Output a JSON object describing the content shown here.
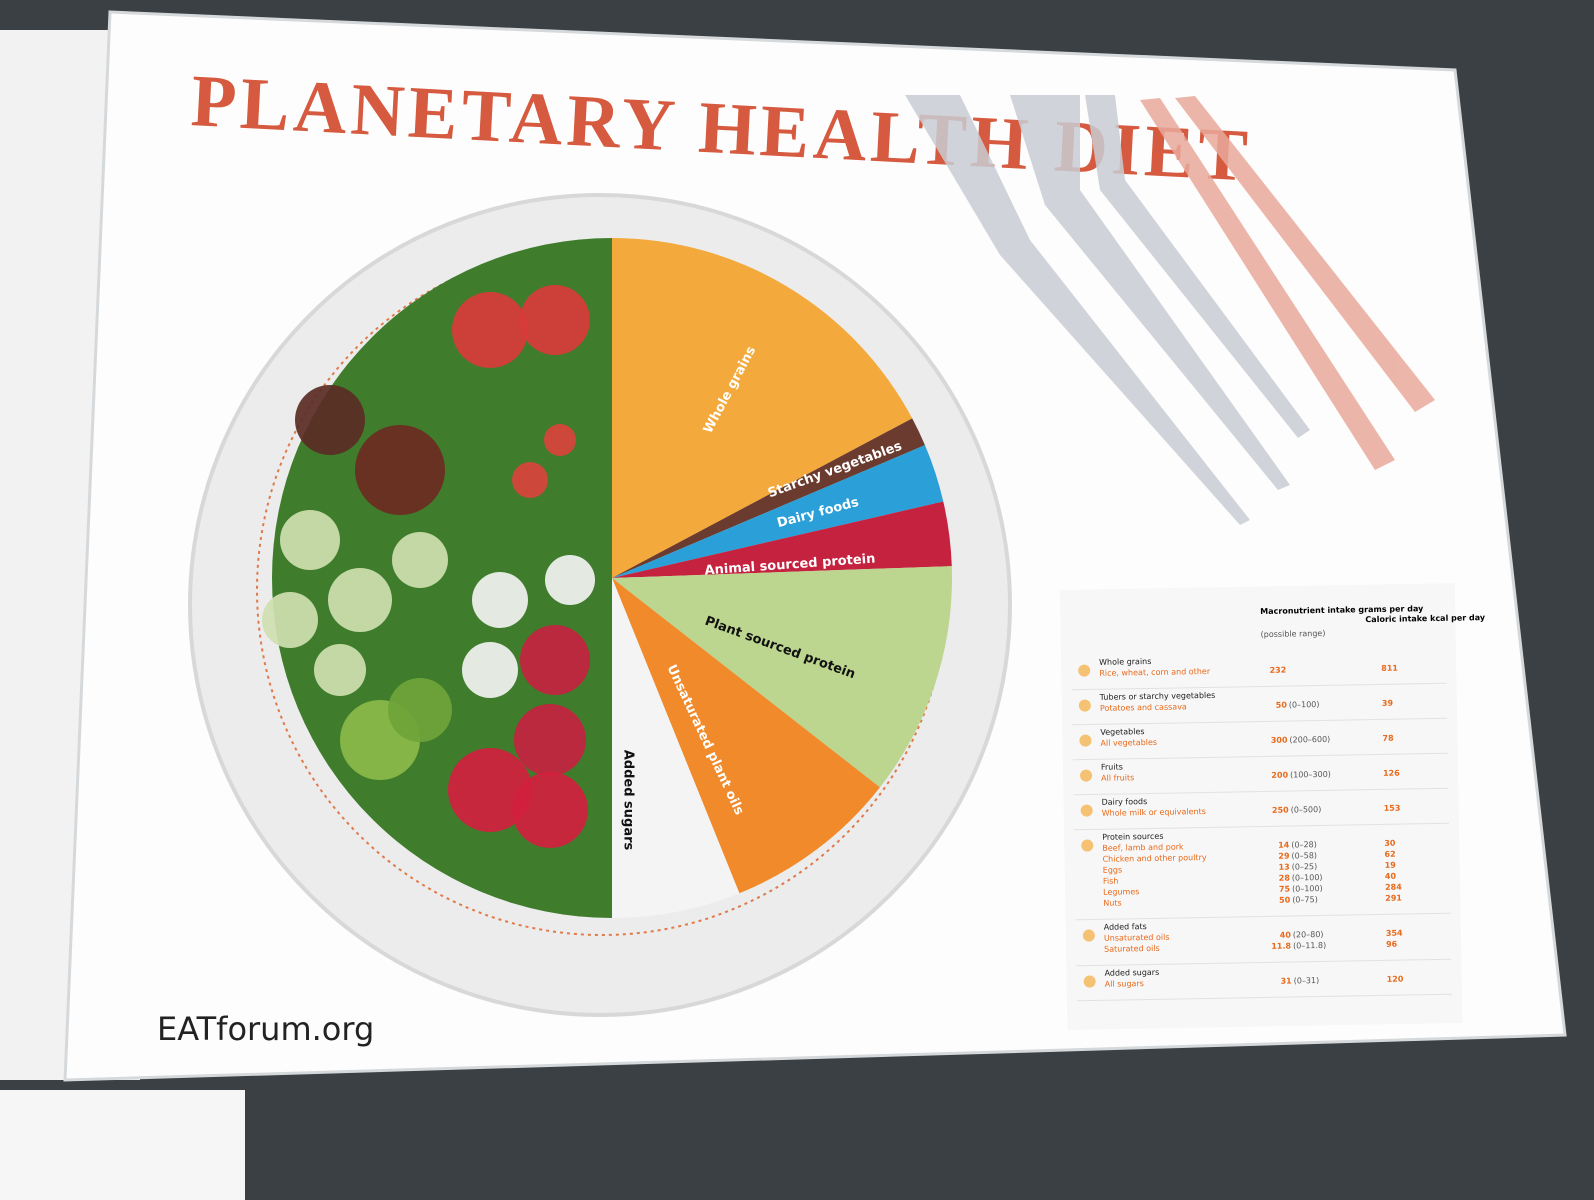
{
  "header": {
    "title": "Planetary Health Diet"
  },
  "plate": {
    "segments": [
      "Whole grains",
      "Starchy vegetables",
      "Dairy foods",
      "Animal sourced protein",
      "Plant sourced protein",
      "Unsaturated plant oils",
      "Added sugars"
    ]
  },
  "table": {
    "columns": [
      "Macronutrient intake grams per day",
      "(possible range)",
      "Caloric intake kcal per day"
    ],
    "groups": [
      {
        "name": "Whole grains",
        "items": [
          {
            "name": "Rice, wheat, corn and other",
            "grams": 232,
            "range": null,
            "kcal": 811
          }
        ]
      },
      {
        "name": "Tubers or starchy vegetables",
        "items": [
          {
            "name": "Potatoes and cassava",
            "grams": 50,
            "range": "(0–100)",
            "kcal": 39
          }
        ]
      },
      {
        "name": "Vegetables",
        "items": [
          {
            "name": "All vegetables",
            "grams": 300,
            "range": "(200–600)",
            "kcal": 78
          }
        ]
      },
      {
        "name": "Fruits",
        "items": [
          {
            "name": "All fruits",
            "grams": 200,
            "range": "(100–300)",
            "kcal": 126
          }
        ]
      },
      {
        "name": "Dairy foods",
        "items": [
          {
            "name": "Whole milk or equivalents",
            "grams": 250,
            "range": "(0–500)",
            "kcal": 153
          }
        ]
      },
      {
        "name": "Protein sources",
        "items": [
          {
            "name": "Beef, lamb and pork",
            "grams": 14,
            "range": "(0–28)",
            "kcal": 30
          },
          {
            "name": "Chicken and other poultry",
            "grams": 29,
            "range": "(0–58)",
            "kcal": 62
          },
          {
            "name": "Eggs",
            "grams": 13,
            "range": "(0–25)",
            "kcal": 19
          },
          {
            "name": "Fish",
            "grams": 28,
            "range": "(0–100)",
            "kcal": 40
          },
          {
            "name": "Legumes",
            "grams": 75,
            "range": "(0–100)",
            "kcal": 284
          },
          {
            "name": "Nuts",
            "grams": 50,
            "range": "(0–75)",
            "kcal": 291
          }
        ]
      },
      {
        "name": "Added fats",
        "items": [
          {
            "name": "Unsaturated oils",
            "grams": 40,
            "range": "(20–80)",
            "kcal": 354
          },
          {
            "name": "Saturated oils",
            "grams": 11.8,
            "range": "(0–11.8)",
            "kcal": 96
          }
        ]
      },
      {
        "name": "Added sugars",
        "items": [
          {
            "name": "All sugars",
            "grams": 31,
            "range": "(0–31)",
            "kcal": 120
          }
        ]
      }
    ]
  },
  "footer": {
    "site": "EATforum.org"
  }
}
